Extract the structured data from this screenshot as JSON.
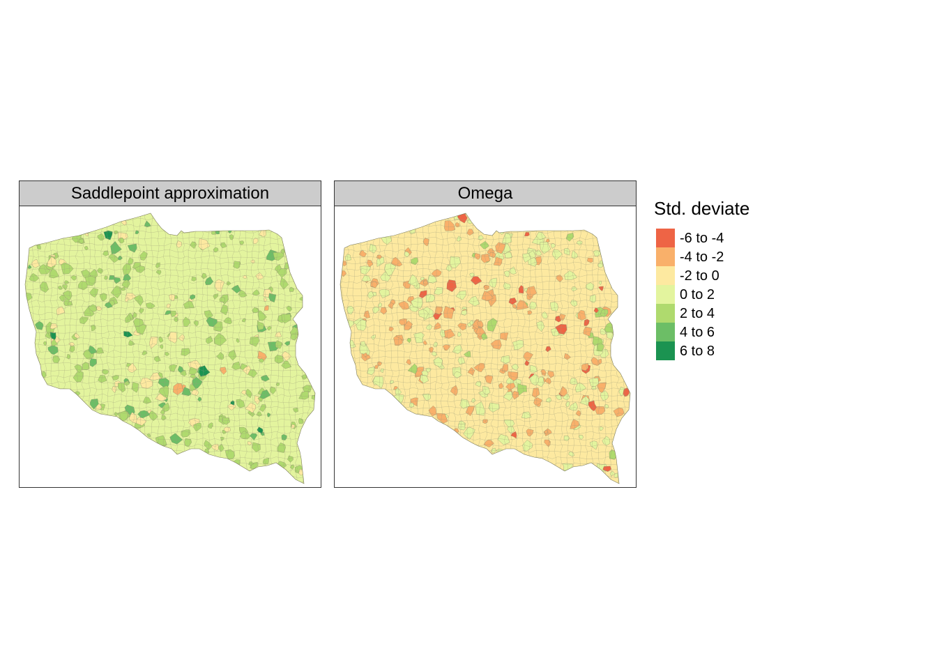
{
  "panels": [
    {
      "title": "Saddlepoint approximation",
      "base_class": "0 to 2",
      "accent_class": "2 to 4",
      "highlight_classes": [
        "2 to 4",
        "4 to 6",
        "6 to 8",
        "-2 to 0",
        "-4 to -2"
      ]
    },
    {
      "title": "Omega",
      "base_class": "-2 to 0",
      "accent_class": "0 to 2",
      "highlight_classes": [
        "0 to 2",
        "-4 to -2",
        "-6 to -4",
        "2 to 4"
      ]
    }
  ],
  "legend": {
    "title": "Std. deviate",
    "items": [
      {
        "label": "-6 to -4",
        "color": "#ee6445"
      },
      {
        "label": "-4 to -2",
        "color": "#f9b06a"
      },
      {
        "label": "-2 to 0",
        "color": "#fde9a0"
      },
      {
        "label": "0 to 2",
        "color": "#e3f49e"
      },
      {
        "label": "2 to 4",
        "color": "#afda6e"
      },
      {
        "label": "4 to 6",
        "color": "#6cbe66"
      },
      {
        "label": "6 to 8",
        "color": "#1b9351"
      }
    ]
  }
}
